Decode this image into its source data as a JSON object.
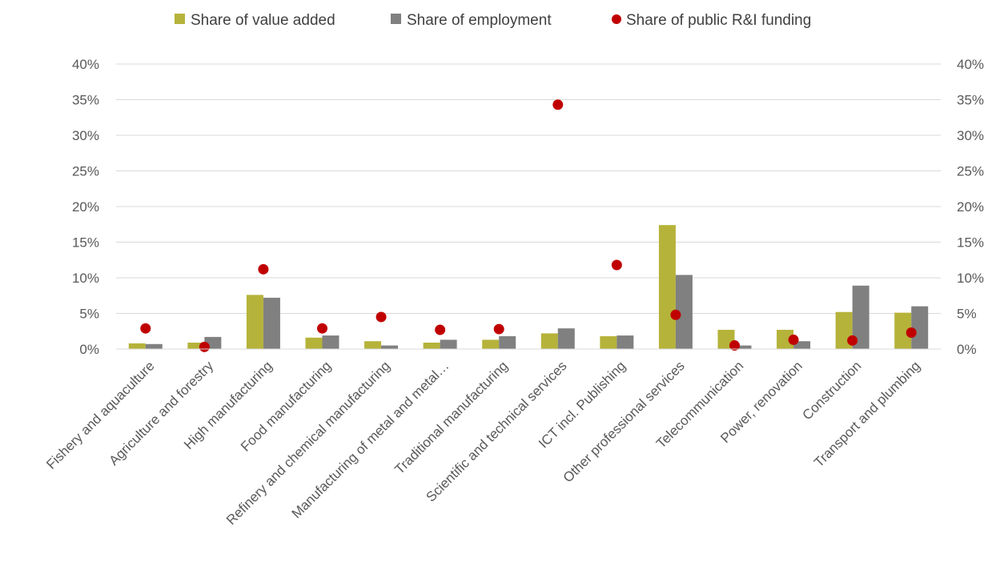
{
  "chart_data": {
    "type": "bar",
    "title": "",
    "xlabel": "",
    "ylabel": "",
    "ylim": [
      0,
      40
    ],
    "y_ticks": [
      "0%",
      "5%",
      "10%",
      "15%",
      "20%",
      "25%",
      "30%",
      "35%",
      "40%"
    ],
    "y_tick_values": [
      0,
      5,
      10,
      15,
      20,
      25,
      30,
      35,
      40
    ],
    "secondary_axis": "right (mirrors left axis 0%–40%)",
    "grid": true,
    "legend_position": "top",
    "categories": [
      "Fishery and aquaculture",
      "Agriculture and forestry",
      "High manufacturing",
      "Food manufacturing",
      "Refinery and chemical manufacturing",
      "Manufacturing of metal and metal…",
      "Traditional manufacturing",
      "Scientific and technical services",
      "ICT incl. Publishing",
      "Other professional services",
      "Telecommunication",
      "Power, renovation",
      "Construction",
      "Transport and plumbing"
    ],
    "series": [
      {
        "name": "Share of value added",
        "kind": "bar",
        "color": "#B5B33A",
        "values": [
          0.8,
          0.9,
          7.6,
          1.6,
          1.1,
          0.9,
          1.3,
          2.2,
          1.8,
          17.4,
          2.7,
          2.7,
          5.2,
          5.1
        ]
      },
      {
        "name": "Share of employment",
        "kind": "bar",
        "color": "#808080",
        "values": [
          0.7,
          1.7,
          7.2,
          1.9,
          0.5,
          1.3,
          1.8,
          2.9,
          1.9,
          10.4,
          0.5,
          1.1,
          8.9,
          6.0
        ]
      },
      {
        "name": "Share of public R&I funding",
        "kind": "scatter",
        "color": "#C00000",
        "values": [
          2.9,
          0.3,
          11.2,
          2.9,
          4.5,
          2.7,
          2.8,
          34.3,
          11.8,
          4.8,
          0.5,
          1.3,
          1.2,
          2.3
        ]
      }
    ]
  }
}
